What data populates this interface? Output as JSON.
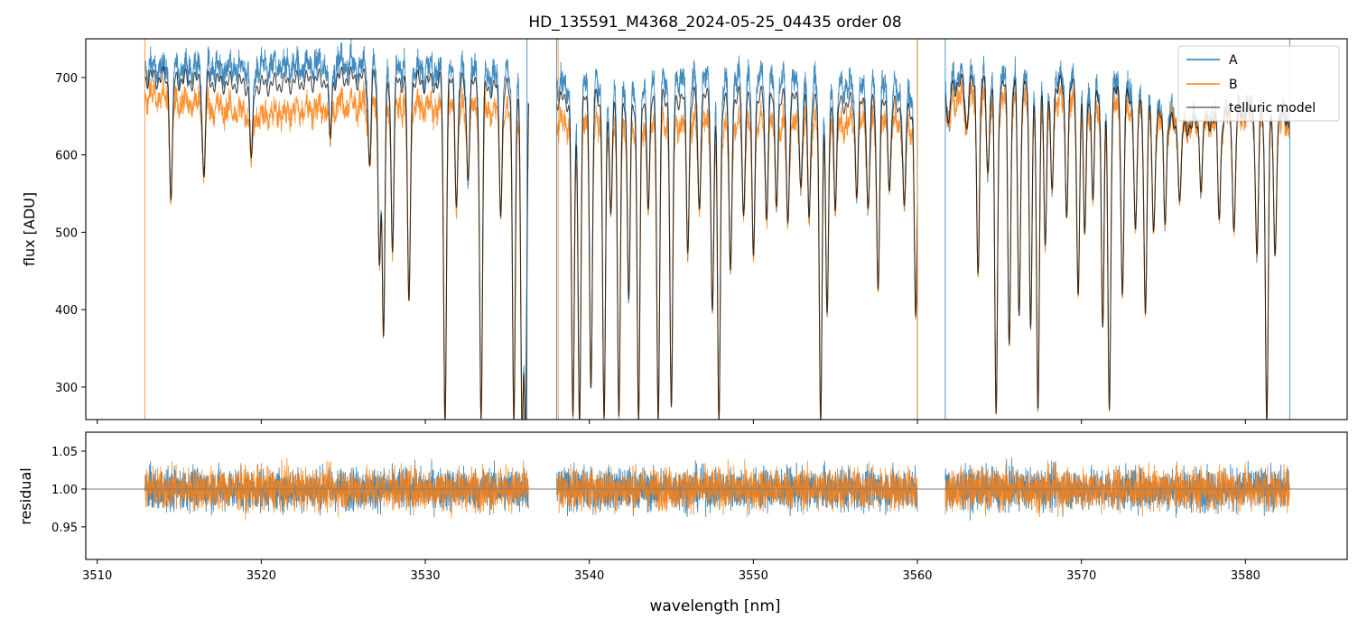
{
  "colors": {
    "A": "#1f77b4",
    "B": "#ff7f0e",
    "model": "#000000",
    "ref_line": "#808080"
  },
  "chart_data": [
    {
      "type": "line",
      "title": "HD_135591_M4368_2024-05-25_04435  order 08",
      "xlabel": "",
      "ylabel": "flux [ADU]",
      "xlim": [
        3509.3,
        3586.2
      ],
      "ylim": [
        258,
        750
      ],
      "xticks": [
        3510,
        3520,
        3530,
        3540,
        3550,
        3560,
        3570,
        3580
      ],
      "yticks": [
        300,
        400,
        500,
        600,
        700
      ],
      "ytick_labels": [
        "300",
        "400",
        "500",
        "600",
        "700"
      ],
      "legend": {
        "position": "top-right",
        "entries": [
          "A",
          "B",
          "telluric model"
        ]
      },
      "segments": [
        [
          3512.9,
          3536.3
        ],
        [
          3538.0,
          3560.0
        ],
        [
          3561.7,
          3582.7
        ]
      ],
      "series": [
        {
          "name": "A",
          "continuum": [
            [
              3512.9,
              712
            ],
            [
              3520,
              712
            ],
            [
              3525,
              718
            ],
            [
              3533,
              705
            ],
            [
              3536.3,
              700
            ],
            [
              3538,
              690
            ],
            [
              3550,
              700
            ],
            [
              3560,
              680
            ],
            [
              3561.7,
              700
            ],
            [
              3568,
              700
            ],
            [
              3572,
              690
            ],
            [
              3576,
              640
            ],
            [
              3580,
              660
            ],
            [
              3582.7,
              650
            ]
          ]
        },
        {
          "name": "B",
          "continuum": [
            [
              3512.9,
              678
            ],
            [
              3520,
              650
            ],
            [
              3525,
              665
            ],
            [
              3533,
              660
            ],
            [
              3536.3,
              650
            ],
            [
              3538,
              640
            ],
            [
              3550,
              640
            ],
            [
              3560,
              640
            ],
            [
              3561.7,
              672
            ],
            [
              3568,
              670
            ],
            [
              3572,
              660
            ],
            [
              3576,
              635
            ],
            [
              3580,
              650
            ],
            [
              3582.7,
              640
            ]
          ]
        },
        {
          "name": "telluric model",
          "continuum": [
            [
              3512.9,
              700
            ],
            [
              3520,
              690
            ],
            [
              3525,
              700
            ],
            [
              3533,
              690
            ],
            [
              3536.3,
              680
            ],
            [
              3538,
              670
            ],
            [
              3550,
              675
            ],
            [
              3560,
              660
            ],
            [
              3561.7,
              690
            ],
            [
              3568,
              690
            ],
            [
              3572,
              680
            ],
            [
              3576,
              635
            ],
            [
              3580,
              655
            ],
            [
              3582.7,
              645
            ]
          ]
        }
      ],
      "absorption_lines": [
        [
          3514.5,
          545
        ],
        [
          3516.5,
          570
        ],
        [
          3519.4,
          590
        ],
        [
          3524.2,
          620
        ],
        [
          3526.6,
          590
        ],
        [
          3527.2,
          470
        ],
        [
          3527.45,
          365
        ],
        [
          3528.0,
          480
        ],
        [
          3529.0,
          405
        ],
        [
          3531.2,
          255
        ],
        [
          3531.9,
          540
        ],
        [
          3532.6,
          575
        ],
        [
          3533.4,
          260
        ],
        [
          3534.6,
          530
        ],
        [
          3535.4,
          260
        ],
        [
          3535.9,
          255
        ],
        [
          3536.1,
          255
        ],
        [
          3539.0,
          258
        ],
        [
          3539.4,
          258
        ],
        [
          3540.1,
          300
        ],
        [
          3540.9,
          258
        ],
        [
          3541.3,
          530
        ],
        [
          3541.8,
          258
        ],
        [
          3542.4,
          410
        ],
        [
          3543.0,
          258
        ],
        [
          3543.6,
          530
        ],
        [
          3544.2,
          258
        ],
        [
          3545.0,
          270
        ],
        [
          3546.0,
          480
        ],
        [
          3546.7,
          530
        ],
        [
          3547.5,
          400
        ],
        [
          3547.9,
          258
        ],
        [
          3548.6,
          445
        ],
        [
          3549.4,
          520
        ],
        [
          3550.0,
          470
        ],
        [
          3550.8,
          520
        ],
        [
          3551.4,
          540
        ],
        [
          3552.1,
          510
        ],
        [
          3552.9,
          560
        ],
        [
          3553.4,
          520
        ],
        [
          3554.1,
          258
        ],
        [
          3554.5,
          390
        ],
        [
          3555.0,
          535
        ],
        [
          3556.3,
          555
        ],
        [
          3557.0,
          530
        ],
        [
          3557.6,
          430
        ],
        [
          3558.3,
          560
        ],
        [
          3559.2,
          525
        ],
        [
          3559.9,
          390
        ],
        [
          3561.9,
          630
        ],
        [
          3563.0,
          635
        ],
        [
          3563.7,
          455
        ],
        [
          3564.3,
          580
        ],
        [
          3564.8,
          265
        ],
        [
          3565.6,
          360
        ],
        [
          3566.2,
          390
        ],
        [
          3566.9,
          380
        ],
        [
          3567.35,
          265
        ],
        [
          3567.8,
          490
        ],
        [
          3568.2,
          550
        ],
        [
          3569.1,
          530
        ],
        [
          3569.8,
          420
        ],
        [
          3570.2,
          500
        ],
        [
          3570.7,
          540
        ],
        [
          3571.3,
          380
        ],
        [
          3571.7,
          270
        ],
        [
          3572.5,
          420
        ],
        [
          3573.3,
          500
        ],
        [
          3573.9,
          395
        ],
        [
          3574.4,
          500
        ],
        [
          3575.1,
          520
        ],
        [
          3576.0,
          540
        ],
        [
          3577.3,
          560
        ],
        [
          3578.4,
          520
        ],
        [
          3579.3,
          500
        ],
        [
          3580.7,
          470
        ],
        [
          3581.3,
          258
        ],
        [
          3581.8,
          470
        ]
      ],
      "noise_amplitude": 16
    },
    {
      "type": "line",
      "title": "",
      "xlabel": "wavelength [nm]",
      "ylabel": "residual",
      "xlim": [
        3509.3,
        3586.2
      ],
      "ylim": [
        0.907,
        1.075
      ],
      "xticks": [
        3510,
        3520,
        3530,
        3540,
        3550,
        3560,
        3570,
        3580
      ],
      "xtick_labels": [
        "3510",
        "3520",
        "3530",
        "3540",
        "3550",
        "3560",
        "3570",
        "3580"
      ],
      "yticks": [
        0.95,
        1.0,
        1.05
      ],
      "ytick_labels": [
        "0.95",
        "1.00",
        "1.05"
      ],
      "reference_line": 1.0,
      "segments": [
        [
          3512.9,
          3536.3
        ],
        [
          3538.0,
          3560.0
        ],
        [
          3561.7,
          3582.7
        ]
      ],
      "series": [
        {
          "name": "A",
          "center": 1.0,
          "spread": 0.028
        },
        {
          "name": "B",
          "center": 1.0,
          "spread": 0.028
        }
      ]
    }
  ]
}
